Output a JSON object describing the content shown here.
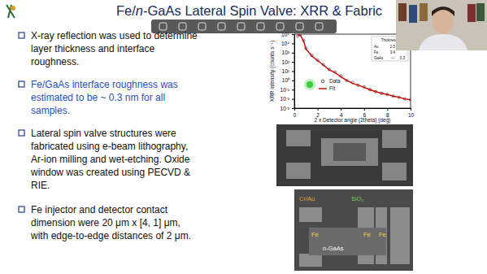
{
  "slide": {
    "title_parts": [
      {
        "text": "Fe/"
      },
      {
        "text": "n",
        "italic": true
      },
      {
        "text": "-GaAs Lateral Spin Valve: XRR & Fabric"
      }
    ],
    "bullets": [
      {
        "lines": [
          "X-ray reflection was used to determine",
          "layer thickness and interface",
          "roughness."
        ]
      },
      {
        "lines": [
          "Fe/GaAs interface roughness was",
          "estimated to be ~ 0.3 nm for all",
          "samples."
        ],
        "color": "#1f4fbf"
      },
      {
        "lines": [
          "Lateral spin valve structures were",
          "fabricated using e-beam lithography,",
          "Ar-ion milling and wet-etching. Oxide",
          "window was created using PECVD &",
          "RIE."
        ]
      },
      {
        "lines": [
          "Fe injector and detector contact",
          "dimension were 20 μm x [4, 1] μm,",
          "with edge-to-edge distances of 2 μm."
        ]
      }
    ],
    "xrr_table": {
      "header": "Thickness [nm]",
      "rows": [
        [
          "Au",
          "2.5"
        ],
        [
          "Fe",
          "3.4"
        ],
        [
          "GaAs",
          "—",
          "0.3"
        ]
      ]
    },
    "sem_labels": [
      {
        "text": "Cr/Au",
        "color": "#e0a030"
      },
      {
        "text": "SiO₂",
        "color": "#7fd34e"
      },
      {
        "text": "Fe",
        "color": "#f0d040"
      },
      {
        "text": "n-GaAs",
        "color": "#ffffff"
      },
      {
        "text": "Fe",
        "color": "#f0d040"
      },
      {
        "text": "Fe",
        "color": "#f0d040"
      }
    ]
  },
  "chart_data": {
    "type": "scatter",
    "x_label": "2 x Detector angle (2theta) (deg)",
    "y_label": "XRR intensity (counts s⁻¹)",
    "x": [
      0.3,
      0.5,
      0.8,
      1.0,
      1.5,
      2.0,
      2.5,
      3.0,
      3.5,
      4.0,
      4.5,
      5.0,
      5.5,
      6.0,
      6.5,
      7.0,
      7.5,
      8.0,
      8.5,
      9.0,
      9.5,
      10.0
    ],
    "series": [
      {
        "name": "Data",
        "type": "scatter",
        "color": "#555555",
        "marker": "circle",
        "values": [
          60000,
          90000,
          20000,
          3000,
          500,
          150,
          50,
          15,
          8,
          3,
          1,
          0.6,
          0.3,
          0.2,
          0.1,
          0.06,
          0.04,
          0.03,
          0.02,
          0.015,
          0.01,
          0.008
        ]
      },
      {
        "name": "Fit",
        "type": "line",
        "color": "#cc0000",
        "line_style": "solid",
        "values": [
          70000,
          85000,
          18000,
          2500,
          450,
          140,
          45,
          14,
          7,
          2.5,
          1,
          0.5,
          0.3,
          0.18,
          0.1,
          0.06,
          0.04,
          0.03,
          0.02,
          0.015,
          0.01,
          0.008
        ]
      }
    ],
    "xlim": [
      0,
      10
    ],
    "xticks": [
      0,
      2,
      4,
      6,
      8,
      10
    ],
    "ylim": [
      0.001,
      100000
    ],
    "yticks": [
      {
        "value": 0.001,
        "label": "10⁻³"
      },
      {
        "value": 0.01,
        "label": "10⁻²"
      },
      {
        "value": 0.1,
        "label": "10⁻¹"
      },
      {
        "value": 1,
        "label": "10⁰"
      },
      {
        "value": 10,
        "label": "10¹"
      },
      {
        "value": 100,
        "label": "10²"
      },
      {
        "value": 1000,
        "label": "10³"
      },
      {
        "value": 10000,
        "label": "10⁴"
      },
      {
        "value": 100000,
        "label": "10⁵"
      }
    ],
    "log": "y",
    "legend": "center left"
  }
}
